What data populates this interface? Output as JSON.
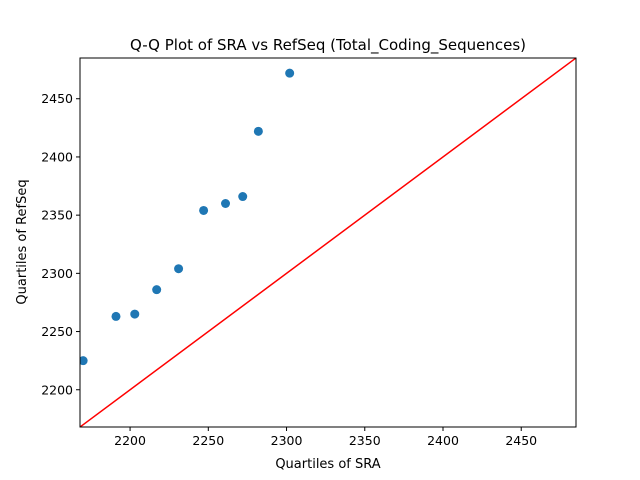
{
  "chart_data": {
    "type": "scatter",
    "title": "Q-Q Plot of SRA vs RefSeq (Total_Coding_Sequences)",
    "xlabel": "Quartiles of SRA",
    "ylabel": "Quartiles of RefSeq",
    "xlim": [
      2168,
      2485
    ],
    "ylim": [
      2168,
      2485
    ],
    "xticks": [
      2200,
      2250,
      2300,
      2350,
      2400,
      2450
    ],
    "yticks": [
      2200,
      2250,
      2300,
      2350,
      2400,
      2450
    ],
    "grid": false,
    "series": [
      {
        "marker_color": "#1f77b4",
        "points": [
          {
            "x": 2170,
            "y": 2225
          },
          {
            "x": 2191,
            "y": 2263
          },
          {
            "x": 2203,
            "y": 2265
          },
          {
            "x": 2217,
            "y": 2286
          },
          {
            "x": 2231,
            "y": 2304
          },
          {
            "x": 2247,
            "y": 2354
          },
          {
            "x": 2261,
            "y": 2360
          },
          {
            "x": 2272,
            "y": 2366
          },
          {
            "x": 2282,
            "y": 2422
          },
          {
            "x": 2302,
            "y": 2472
          }
        ]
      }
    ],
    "reference_line": {
      "type": "y=x",
      "color": "#ff0000"
    }
  }
}
